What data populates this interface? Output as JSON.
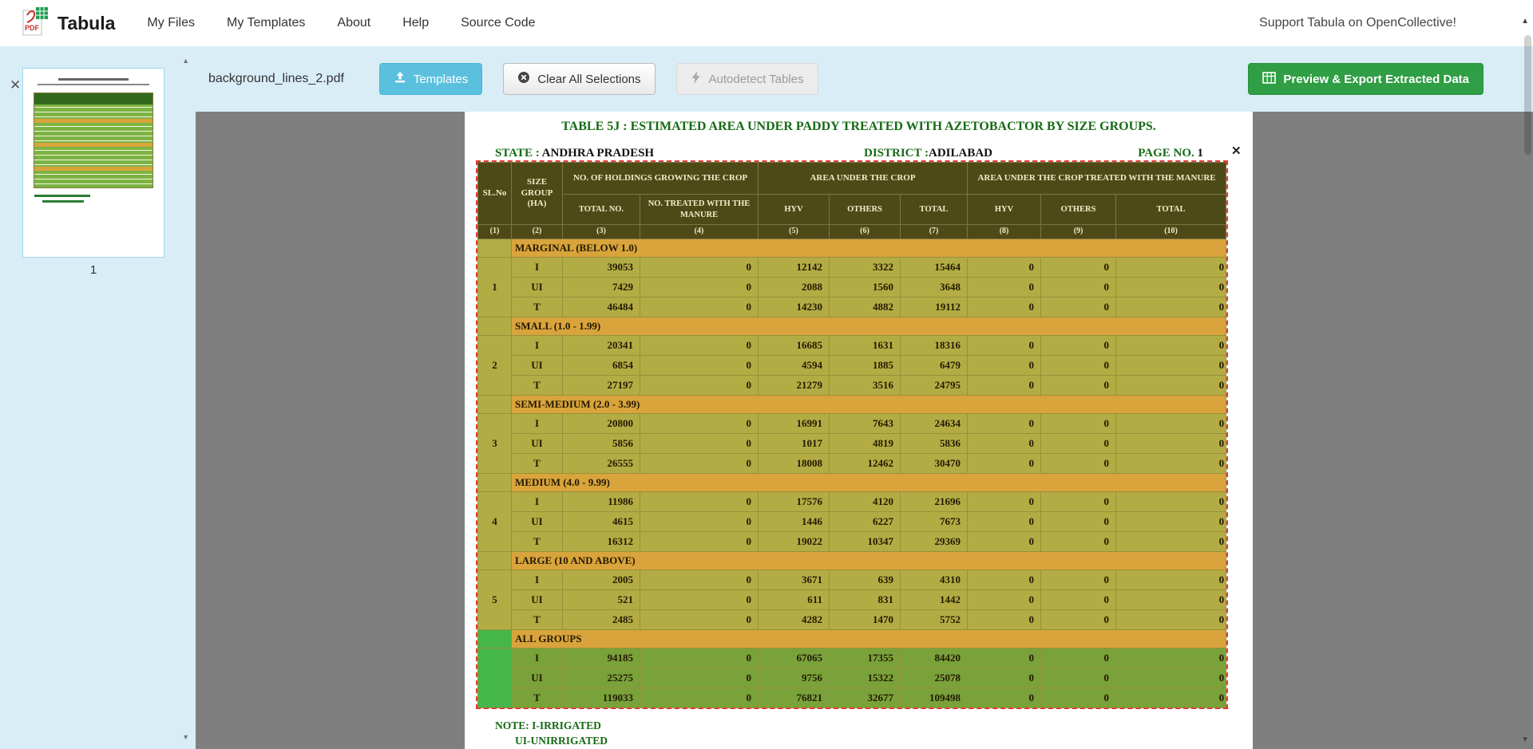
{
  "navbar": {
    "brand": "Tabula",
    "items": [
      "My Files",
      "My Templates",
      "About",
      "Help",
      "Source Code"
    ],
    "support": "Support Tabula on OpenCollective!"
  },
  "toolbar": {
    "filename": "background_lines_2.pdf",
    "templates_label": "Templates",
    "clear_label": "Clear All Selections",
    "autodetect_label": "Autodetect Tables",
    "export_label": "Preview & Export Extracted Data"
  },
  "sidebar": {
    "page_number": "1"
  },
  "icons": {
    "close": "✕",
    "scroll_up": "▲",
    "scroll_down": "▼"
  },
  "colors": {
    "accent_blue": "#5bc0de",
    "accent_green": "#2f9e44",
    "toolbar_bg": "#d9edf7",
    "selection_red": "#e53935",
    "table_header_bg": "#4e4a18",
    "table_row_bg": "#b3ac44",
    "band_bg": "#d9a43c",
    "all_groups_row_bg": "#7aa23b",
    "all_groups_sl_bg": "#45b649"
  },
  "pdf": {
    "title": "TABLE 5J : ESTIMATED AREA UNDER PADDY  TREATED WITH AZETOBACTOR BY SIZE GROUPS.",
    "state_label": "STATE :",
    "state_value": "ANDHRA PRADESH",
    "district_label": "DISTRICT :",
    "district_value": "ADILABAD",
    "page_no_label": "PAGE NO.",
    "page_no_value": "1",
    "notes": [
      "NOTE: I-IRRIGATED",
      "UI-UNIRRIGATED"
    ]
  },
  "table": {
    "type": "table",
    "header": {
      "sl": "SL.No",
      "size_group": "SIZE GROUP (HA)",
      "holdings_group": "NO. OF HOLDINGS GROWING THE CROP",
      "area_group": "AREA UNDER THE CROP",
      "treated_group": "AREA UNDER THE CROP TREATED WITH THE  MANURE",
      "sub": [
        "TOTAL NO.",
        "NO. TREATED WITH THE MANURE",
        "HYV",
        "OTHERS",
        "TOTAL",
        "HYV",
        "OTHERS",
        "TOTAL"
      ],
      "nums": [
        "(1)",
        "(2)",
        "(3)",
        "(4)",
        "(5)",
        "(6)",
        "(7)",
        "(8)",
        "(9)",
        "(10)"
      ]
    },
    "sections": [
      {
        "sl": "1",
        "label": "MARGINAL (BELOW 1.0)",
        "highlight": false,
        "rows": [
          {
            "rt": "I",
            "values": [
              "39053",
              "0",
              "12142",
              "3322",
              "15464",
              "0",
              "0",
              "0"
            ]
          },
          {
            "rt": "UI",
            "values": [
              "7429",
              "0",
              "2088",
              "1560",
              "3648",
              "0",
              "0",
              "0"
            ]
          },
          {
            "rt": "T",
            "values": [
              "46484",
              "0",
              "14230",
              "4882",
              "19112",
              "0",
              "0",
              "0"
            ]
          }
        ]
      },
      {
        "sl": "2",
        "label": "SMALL (1.0 - 1.99)",
        "highlight": false,
        "rows": [
          {
            "rt": "I",
            "values": [
              "20341",
              "0",
              "16685",
              "1631",
              "18316",
              "0",
              "0",
              "0"
            ]
          },
          {
            "rt": "UI",
            "values": [
              "6854",
              "0",
              "4594",
              "1885",
              "6479",
              "0",
              "0",
              "0"
            ]
          },
          {
            "rt": "T",
            "values": [
              "27197",
              "0",
              "21279",
              "3516",
              "24795",
              "0",
              "0",
              "0"
            ]
          }
        ]
      },
      {
        "sl": "3",
        "label": "SEMI-MEDIUM (2.0 - 3.99)",
        "highlight": false,
        "rows": [
          {
            "rt": "I",
            "values": [
              "20800",
              "0",
              "16991",
              "7643",
              "24634",
              "0",
              "0",
              "0"
            ]
          },
          {
            "rt": "UI",
            "values": [
              "5856",
              "0",
              "1017",
              "4819",
              "5836",
              "0",
              "0",
              "0"
            ]
          },
          {
            "rt": "T",
            "values": [
              "26555",
              "0",
              "18008",
              "12462",
              "30470",
              "0",
              "0",
              "0"
            ]
          }
        ]
      },
      {
        "sl": "4",
        "label": "MEDIUM (4.0 - 9.99)",
        "highlight": false,
        "rows": [
          {
            "rt": "I",
            "values": [
              "11986",
              "0",
              "17576",
              "4120",
              "21696",
              "0",
              "0",
              "0"
            ]
          },
          {
            "rt": "UI",
            "values": [
              "4615",
              "0",
              "1446",
              "6227",
              "7673",
              "0",
              "0",
              "0"
            ]
          },
          {
            "rt": "T",
            "values": [
              "16312",
              "0",
              "19022",
              "10347",
              "29369",
              "0",
              "0",
              "0"
            ]
          }
        ]
      },
      {
        "sl": "5",
        "label": "LARGE (10 AND ABOVE)",
        "highlight": false,
        "rows": [
          {
            "rt": "I",
            "values": [
              "2005",
              "0",
              "3671",
              "639",
              "4310",
              "0",
              "0",
              "0"
            ]
          },
          {
            "rt": "UI",
            "values": [
              "521",
              "0",
              "611",
              "831",
              "1442",
              "0",
              "0",
              "0"
            ]
          },
          {
            "rt": "T",
            "values": [
              "2485",
              "0",
              "4282",
              "1470",
              "5752",
              "0",
              "0",
              "0"
            ]
          }
        ]
      },
      {
        "sl": "",
        "label": "ALL GROUPS",
        "highlight": true,
        "rows": [
          {
            "rt": "I",
            "values": [
              "94185",
              "0",
              "67065",
              "17355",
              "84420",
              "0",
              "0",
              "0"
            ]
          },
          {
            "rt": "UI",
            "values": [
              "25275",
              "0",
              "9756",
              "15322",
              "25078",
              "0",
              "0",
              "0"
            ]
          },
          {
            "rt": "T",
            "values": [
              "119033",
              "0",
              "76821",
              "32677",
              "109498",
              "0",
              "0",
              "0"
            ]
          }
        ]
      }
    ]
  }
}
